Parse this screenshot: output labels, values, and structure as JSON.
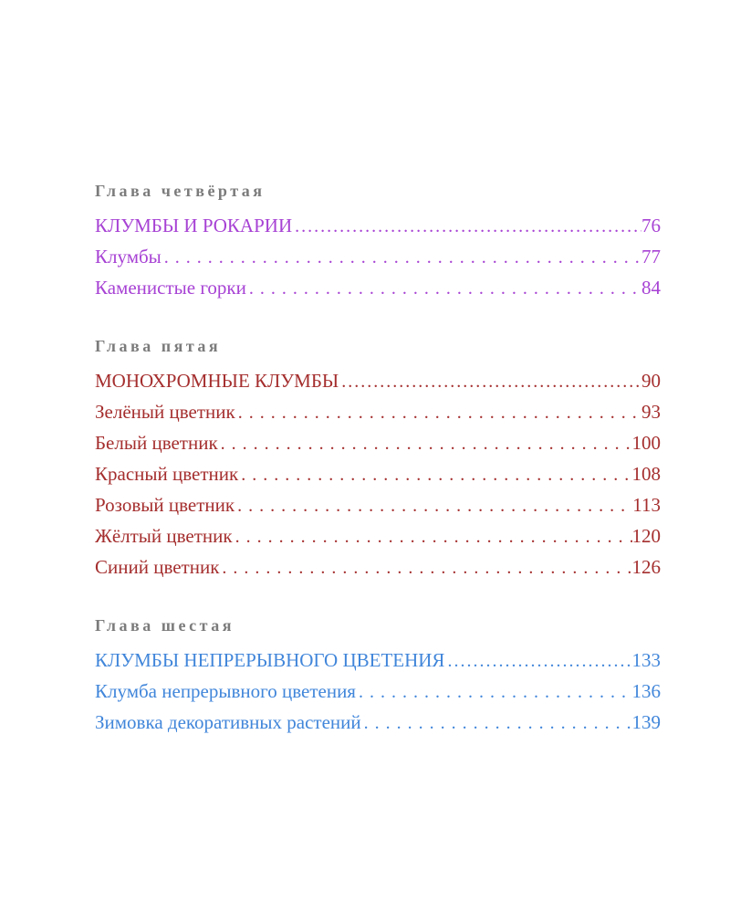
{
  "page": {
    "background": "#ffffff",
    "heading_color": "#7b7b7b"
  },
  "toc": {
    "sections": [
      {
        "heading": "Глава четвёртая",
        "color": "#a742d4",
        "entries": [
          {
            "title": "КЛУМБЫ И РОКАРИИ",
            "page": "76"
          },
          {
            "title": "Клумбы",
            "page": "77"
          },
          {
            "title": "Каменистые горки",
            "page": "84"
          }
        ]
      },
      {
        "heading": "Глава пятая",
        "color": "#a52e2e",
        "entries": [
          {
            "title": "МОНОХРОМНЫЕ КЛУМБЫ",
            "page": "90"
          },
          {
            "title": "Зелёный цветник",
            "page": "93"
          },
          {
            "title": "Белый цветник",
            "page": "100"
          },
          {
            "title": "Красный цветник",
            "page": "108"
          },
          {
            "title": "Розовый цветник",
            "page": "113"
          },
          {
            "title": "Жёлтый цветник",
            "page": "120"
          },
          {
            "title": "Синий цветник",
            "page": "126"
          }
        ]
      },
      {
        "heading": "Глава шестая",
        "color": "#4186da",
        "entries": [
          {
            "title": "КЛУМБЫ НЕПРЕРЫВНОГО ЦВЕТЕНИЯ",
            "page": "133"
          },
          {
            "title": "Клумба непрерывного цветения",
            "page": "136"
          },
          {
            "title": "Зимовка декоративных растений",
            "page": "139"
          }
        ]
      }
    ]
  }
}
